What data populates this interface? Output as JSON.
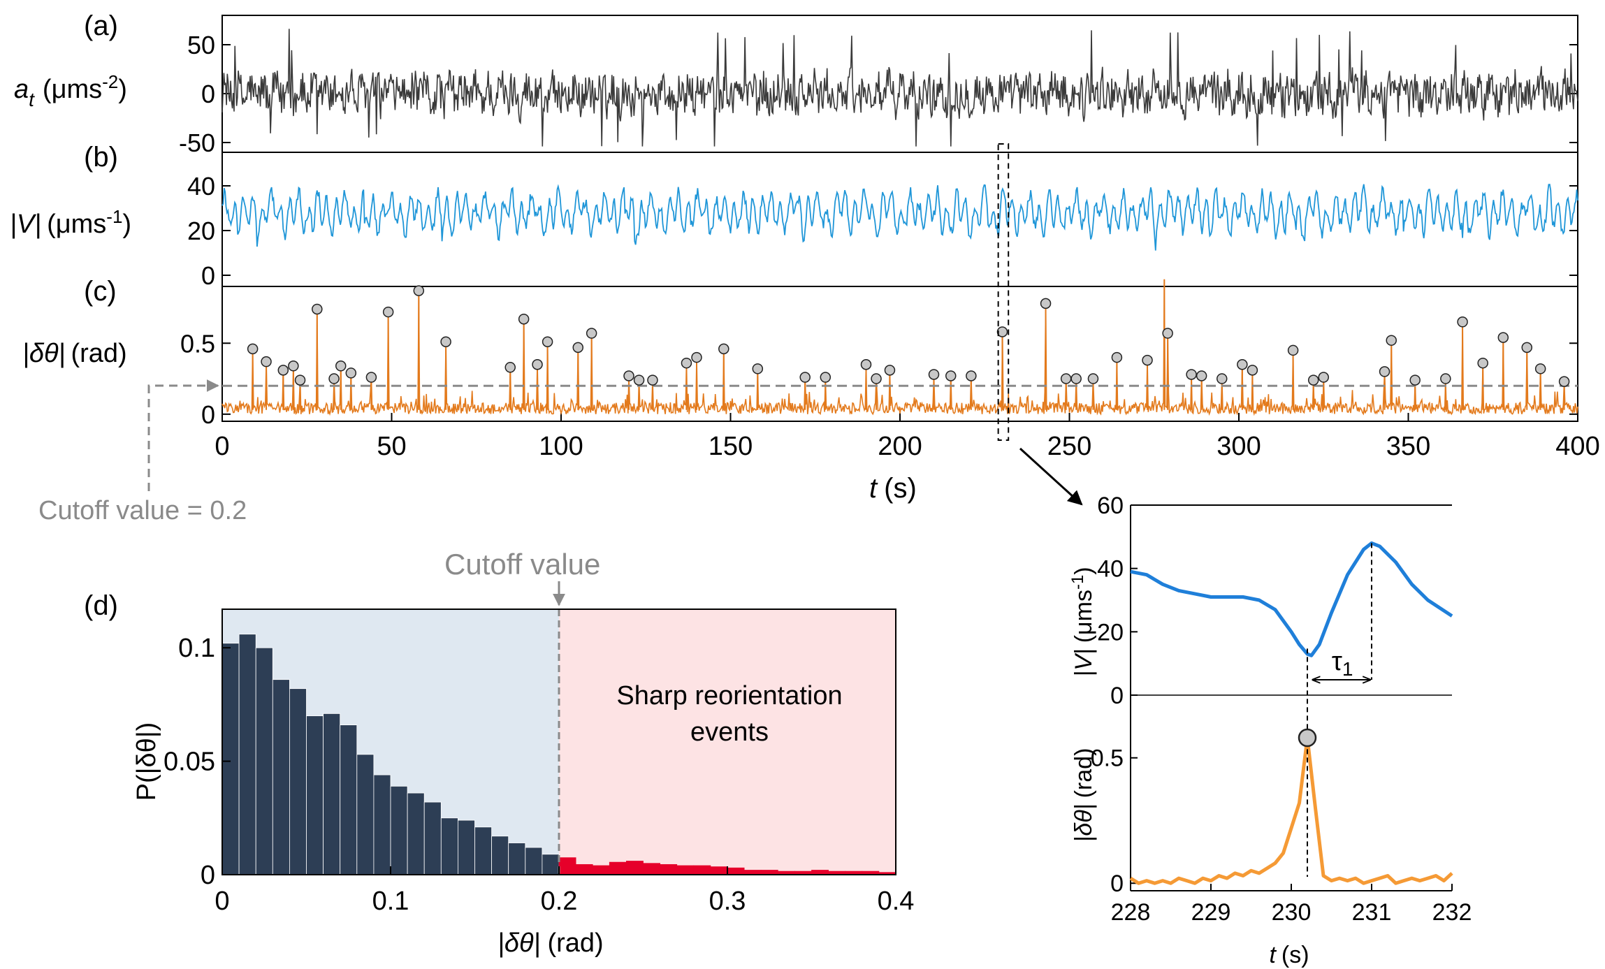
{
  "panel_labels": {
    "a": "(a)",
    "b": "(b)",
    "c": "(c)",
    "d": "(d)"
  },
  "annotations": {
    "cutoff_value_text": "Cutoff value = 0.2",
    "cutoff_label": "Cutoff value",
    "sharp_events_line1": "Sharp reorientation",
    "sharp_events_line2": "events",
    "tau": "τ",
    "tau_sub": "1"
  },
  "colors": {
    "accel": "#3a3a3a",
    "speed": "#1f96d8",
    "angle": "#e37a1c",
    "inset_speed": "#1f7fd9",
    "inset_angle": "#f59a35",
    "marker_fill": "#c8c8c8",
    "hist_low": "#2d3e55",
    "hist_high": "#e6002a",
    "bg_low": "#dfe8f1",
    "bg_high": "#fde3e4",
    "cutoff_gray": "#8a8a8a"
  },
  "chart_data": [
    {
      "id": "a",
      "type": "line",
      "ylabel": {
        "main": "a",
        "sub": "t",
        "unit": "(μms",
        "exp": "-2",
        "close": ")"
      },
      "xlim": [
        0,
        400
      ],
      "ylim": [
        -60,
        80
      ],
      "yticks": [
        50,
        0,
        -50
      ],
      "ytick_labels": [
        "50",
        "0",
        "-50"
      ],
      "series": [
        {
          "amplitude": 20,
          "peak_max": 73,
          "peak_min": -54
        }
      ]
    },
    {
      "id": "b",
      "type": "line",
      "ylabel": {
        "main": "|V|",
        "unit": "(μms",
        "exp": "-1",
        "close": ")"
      },
      "xlim": [
        0,
        400
      ],
      "ylim": [
        -5,
        55
      ],
      "yticks": [
        40,
        20,
        0
      ],
      "ytick_labels": [
        "40",
        "20",
        "0"
      ],
      "series": [
        {
          "mean": 28,
          "min": 8,
          "max": 43
        }
      ]
    },
    {
      "id": "c",
      "type": "line",
      "ylabel": {
        "main": "|δθ|",
        "unit": "(rad)"
      },
      "xlim": [
        0,
        400
      ],
      "ylim": [
        -0.05,
        0.9
      ],
      "yticks": [
        0.5,
        0
      ],
      "ytick_labels": [
        "0.5",
        "0"
      ],
      "xticks": [
        0,
        50,
        100,
        150,
        200,
        250,
        300,
        350,
        400
      ],
      "xtick_labels": [
        "0",
        "50",
        "100",
        "150",
        "200",
        "250",
        "300",
        "350",
        "400"
      ],
      "xlabel": {
        "main": "t",
        "unit": "(s)"
      },
      "cutoff": 0.2,
      "events": [
        {
          "t": 9,
          "v": 0.46
        },
        {
          "t": 13,
          "v": 0.37
        },
        {
          "t": 18,
          "v": 0.31
        },
        {
          "t": 21,
          "v": 0.34
        },
        {
          "t": 23,
          "v": 0.24
        },
        {
          "t": 28,
          "v": 0.74
        },
        {
          "t": 33,
          "v": 0.25
        },
        {
          "t": 35,
          "v": 0.34
        },
        {
          "t": 38,
          "v": 0.29
        },
        {
          "t": 44,
          "v": 0.26
        },
        {
          "t": 49,
          "v": 0.72
        },
        {
          "t": 58,
          "v": 0.87
        },
        {
          "t": 66,
          "v": 0.51
        },
        {
          "t": 85,
          "v": 0.33
        },
        {
          "t": 89,
          "v": 0.67
        },
        {
          "t": 93,
          "v": 0.35
        },
        {
          "t": 96,
          "v": 0.51
        },
        {
          "t": 105,
          "v": 0.47
        },
        {
          "t": 109,
          "v": 0.57
        },
        {
          "t": 120,
          "v": 0.27
        },
        {
          "t": 123,
          "v": 0.24
        },
        {
          "t": 127,
          "v": 0.24
        },
        {
          "t": 137,
          "v": 0.36
        },
        {
          "t": 140,
          "v": 0.4
        },
        {
          "t": 148,
          "v": 0.46
        },
        {
          "t": 158,
          "v": 0.32
        },
        {
          "t": 172,
          "v": 0.26
        },
        {
          "t": 178,
          "v": 0.26
        },
        {
          "t": 190,
          "v": 0.35
        },
        {
          "t": 193,
          "v": 0.25
        },
        {
          "t": 197,
          "v": 0.31
        },
        {
          "t": 210,
          "v": 0.28
        },
        {
          "t": 215,
          "v": 0.27
        },
        {
          "t": 221,
          "v": 0.27
        },
        {
          "t": 230.2,
          "v": 0.58
        },
        {
          "t": 243,
          "v": 0.78
        },
        {
          "t": 249,
          "v": 0.25
        },
        {
          "t": 252,
          "v": 0.25
        },
        {
          "t": 257,
          "v": 0.25
        },
        {
          "t": 264,
          "v": 0.4
        },
        {
          "t": 273,
          "v": 0.38
        },
        {
          "t": 279,
          "v": 0.57
        },
        {
          "t": 286,
          "v": 0.28
        },
        {
          "t": 289,
          "v": 0.27
        },
        {
          "t": 295,
          "v": 0.25
        },
        {
          "t": 301,
          "v": 0.35
        },
        {
          "t": 304,
          "v": 0.31
        },
        {
          "t": 316,
          "v": 0.45
        },
        {
          "t": 322,
          "v": 0.24
        },
        {
          "t": 325,
          "v": 0.26
        },
        {
          "t": 343,
          "v": 0.3
        },
        {
          "t": 345,
          "v": 0.52
        },
        {
          "t": 352,
          "v": 0.24
        },
        {
          "t": 361,
          "v": 0.25
        },
        {
          "t": 366,
          "v": 0.65
        },
        {
          "t": 372,
          "v": 0.36
        },
        {
          "t": 378,
          "v": 0.54
        },
        {
          "t": 385,
          "v": 0.47
        },
        {
          "t": 389,
          "v": 0.32
        },
        {
          "t": 396,
          "v": 0.23
        }
      ],
      "unmarked_peaks": [
        {
          "t": 278,
          "v": 0.95
        }
      ],
      "zoom_window": [
        229,
        232
      ]
    },
    {
      "id": "d",
      "type": "bar",
      "xlabel": {
        "main": "|δθ|",
        "unit": "(rad)"
      },
      "ylabel": "P(|δθ|)",
      "xlim": [
        0,
        0.4
      ],
      "ylim": [
        0,
        0.117
      ],
      "bin_width": 0.01,
      "values": [
        0.102,
        0.106,
        0.1,
        0.086,
        0.082,
        0.07,
        0.071,
        0.066,
        0.053,
        0.044,
        0.039,
        0.036,
        0.032,
        0.025,
        0.024,
        0.021,
        0.017,
        0.014,
        0.012,
        0.009,
        0.0075,
        0.0045,
        0.004,
        0.0055,
        0.006,
        0.005,
        0.0045,
        0.004,
        0.004,
        0.0035,
        0.003,
        0.002,
        0.002,
        0.0015,
        0.0015,
        0.002,
        0.0015,
        0.0015,
        0.0015,
        0.001
      ],
      "xticks": [
        0,
        0.1,
        0.2,
        0.3,
        0.4
      ],
      "xtick_labels": [
        "0",
        "0.1",
        "0.2",
        "0.3",
        "0.4"
      ],
      "yticks": [
        0.1,
        0.05,
        0
      ],
      "ytick_labels": [
        "0.1",
        "0.05",
        "0"
      ],
      "cutoff": 0.2
    },
    {
      "id": "inset",
      "type": "line",
      "xlim": [
        228,
        232
      ],
      "xticks": [
        228,
        229,
        230,
        231,
        232
      ],
      "xtick_labels": [
        "228",
        "229",
        "230",
        "231",
        "232"
      ],
      "xlabel": {
        "main": "t",
        "unit": "(s)"
      },
      "top": {
        "ylabel": {
          "main": "|V|",
          "unit": "(μms",
          "exp": "-1",
          "close": ")"
        },
        "ylim": [
          0,
          60
        ],
        "yticks": [
          60,
          40,
          20,
          0
        ],
        "ytick_labels": [
          "60",
          "40",
          "20",
          "0"
        ],
        "x": [
          228.0,
          228.2,
          228.4,
          228.6,
          228.8,
          229.0,
          229.2,
          229.4,
          229.6,
          229.8,
          230.0,
          230.1,
          230.2,
          230.25,
          230.35,
          230.5,
          230.7,
          230.9,
          231.0,
          231.1,
          231.3,
          231.5,
          231.7,
          232.0
        ],
        "y": [
          39,
          38,
          35,
          33,
          32,
          31,
          31,
          31,
          30,
          27,
          20,
          16,
          13,
          12.5,
          16,
          26,
          38,
          46,
          48,
          47,
          42,
          35,
          30,
          25
        ]
      },
      "bottom": {
        "ylabel": {
          "main": "|δθ|",
          "unit": "(rad)"
        },
        "ylim": [
          -0.03,
          0.75
        ],
        "yticks": [
          0.5,
          0
        ],
        "ytick_labels": [
          "0.5",
          "0"
        ],
        "x": [
          228.0,
          228.1,
          228.2,
          228.3,
          228.4,
          228.5,
          228.6,
          228.7,
          228.8,
          228.9,
          229.0,
          229.1,
          229.2,
          229.3,
          229.4,
          229.5,
          229.6,
          229.7,
          229.8,
          229.9,
          230.0,
          230.1,
          230.2,
          230.3,
          230.4,
          230.5,
          230.6,
          230.7,
          230.8,
          230.9,
          231.0,
          231.1,
          231.2,
          231.3,
          231.4,
          231.5,
          231.6,
          231.7,
          231.8,
          231.9,
          232.0
        ],
        "y": [
          0.02,
          0.0,
          0.01,
          0.0,
          0.01,
          0.0,
          0.02,
          0.01,
          0.0,
          0.02,
          0.01,
          0.03,
          0.02,
          0.04,
          0.03,
          0.05,
          0.04,
          0.06,
          0.08,
          0.12,
          0.22,
          0.32,
          0.58,
          0.3,
          0.03,
          0.01,
          0.02,
          0.01,
          0.02,
          0.0,
          0.01,
          0.02,
          0.03,
          0.0,
          0.01,
          0.02,
          0.01,
          0.02,
          0.03,
          0.01,
          0.04
        ],
        "event": {
          "t": 230.2,
          "v": 0.58
        }
      },
      "tau_span": [
        230.25,
        231.0
      ]
    }
  ]
}
